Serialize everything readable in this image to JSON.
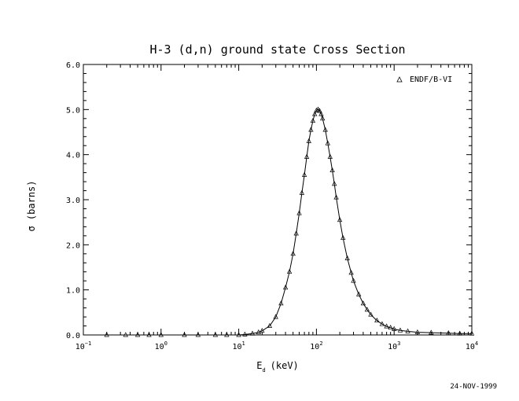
{
  "chart_data": {
    "type": "line",
    "title": "H-3 (d,n) ground state Cross Section",
    "xlabel": {
      "main": "E",
      "sub": "d",
      "unit": "(keV)"
    },
    "ylabel": "σ (barns)",
    "x_scale": "log",
    "xlim": [
      0.1,
      10000
    ],
    "ylim": [
      0,
      6.0
    ],
    "x_ticks": [
      {
        "base": "10",
        "exp": "−1"
      },
      {
        "base": "10",
        "exp": "0"
      },
      {
        "base": "10",
        "exp": "1"
      },
      {
        "base": "10",
        "exp": "2"
      },
      {
        "base": "10",
        "exp": "3"
      },
      {
        "base": "10",
        "exp": "4"
      }
    ],
    "y_ticks": [
      "0.0",
      "1.0",
      "2.0",
      "3.0",
      "4.0",
      "5.0",
      "6.0"
    ],
    "grid": false,
    "legend_position": "top-right",
    "series": [
      {
        "name": "ENDF/B-VI",
        "marker": "triangle",
        "x": [
          0.2,
          0.35,
          0.5,
          0.7,
          1,
          2,
          3,
          5,
          7,
          10,
          12,
          15,
          18,
          20,
          25,
          30,
          35,
          40,
          45,
          50,
          55,
          60,
          65,
          70,
          75,
          80,
          85,
          90,
          95,
          100,
          105,
          110,
          115,
          120,
          130,
          140,
          150,
          160,
          170,
          180,
          200,
          220,
          250,
          280,
          300,
          350,
          400,
          450,
          500,
          600,
          700,
          800,
          900,
          1000,
          1200,
          1500,
          2000,
          3000,
          5000,
          7000,
          10000
        ],
        "y": [
          0.0,
          0.0,
          0.0,
          0.0,
          0.0,
          0.0,
          0.0,
          0.0,
          0.0,
          0.0,
          0.01,
          0.03,
          0.06,
          0.09,
          0.2,
          0.4,
          0.7,
          1.05,
          1.4,
          1.8,
          2.25,
          2.7,
          3.15,
          3.55,
          3.95,
          4.3,
          4.55,
          4.75,
          4.9,
          4.98,
          5.0,
          4.97,
          4.9,
          4.8,
          4.55,
          4.25,
          3.95,
          3.65,
          3.35,
          3.05,
          2.55,
          2.15,
          1.7,
          1.38,
          1.2,
          0.9,
          0.7,
          0.56,
          0.45,
          0.32,
          0.24,
          0.19,
          0.16,
          0.13,
          0.1,
          0.08,
          0.06,
          0.05,
          0.04,
          0.03,
          0.03
        ]
      }
    ]
  },
  "footer": {
    "date": "24-NOV-1999"
  }
}
